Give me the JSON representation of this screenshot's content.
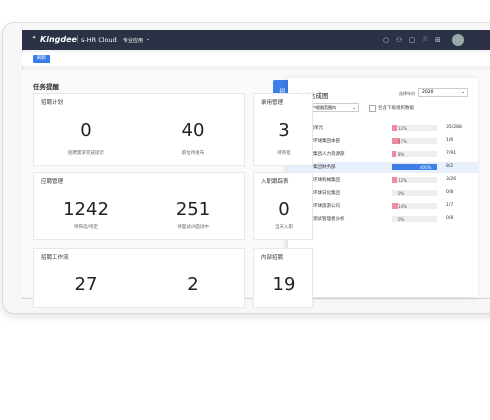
{
  "nav": {
    "brand": "Kingdee",
    "product": "s-HR Cloud",
    "menu": "专业应用"
  },
  "toolbar": {
    "refresh": "刷新"
  },
  "section_title": "任务提醒",
  "cards": [
    {
      "title": "招聘计划",
      "metrics": [
        {
          "value": 0,
          "label": "招聘需求完成提示"
        },
        {
          "value": 40,
          "label": "职位待发布"
        }
      ]
    },
    {
      "title": "录用管理",
      "metrics": [
        {
          "value": 3,
          "label": "待审批"
        }
      ]
    },
    {
      "title": "应聘管理",
      "metrics": [
        {
          "value": 1242,
          "label": "待筛选/待定"
        },
        {
          "value": 251,
          "label": "待面试/A面试中"
        }
      ]
    },
    {
      "title": "入职跟踪表",
      "metrics": [
        {
          "value": 0,
          "label": "当天入职"
        }
      ]
    },
    {
      "title": "招聘工作流",
      "metrics": [
        {
          "value": 27,
          "label": ""
        },
        {
          "value": 2,
          "label": ""
        }
      ]
    },
    {
      "title": "内部招聘",
      "metrics": [
        {
          "value": 19,
          "label": ""
        }
      ]
    }
  ],
  "panel": {
    "tab": "招聘达成图",
    "title": "招聘达成图",
    "year_label": "选择年份",
    "year": "2020",
    "scope": "当前用户权限范围内",
    "include_sub": "包含下级组织数据",
    "rows": [
      {
        "name": "管理单元",
        "progress": 12,
        "progress_label": "12%",
        "ratio": "35/288"
      },
      {
        "name": "环球集团本部",
        "progress": 17,
        "progress_label": "17%",
        "ratio": "1/6"
      },
      {
        "name": "集团人力资源部",
        "progress": 8,
        "progress_label": "8%",
        "ratio": "7/91"
      },
      {
        "name": "集团财务部",
        "progress": 400,
        "progress_label": "400%",
        "ratio": "8/2"
      },
      {
        "name": "环球机械集团",
        "progress": 12,
        "progress_label": "12%",
        "ratio": "3/26"
      },
      {
        "name": "环球日化集团",
        "progress": 0,
        "progress_label": "0%",
        "ratio": "0/8"
      },
      {
        "name": "环球旅游公司",
        "progress": 14,
        "progress_label": "14%",
        "ratio": "1/7"
      },
      {
        "name": "测试管理者分析",
        "progress": 0,
        "progress_label": "0%",
        "ratio": "0/8"
      }
    ]
  }
}
